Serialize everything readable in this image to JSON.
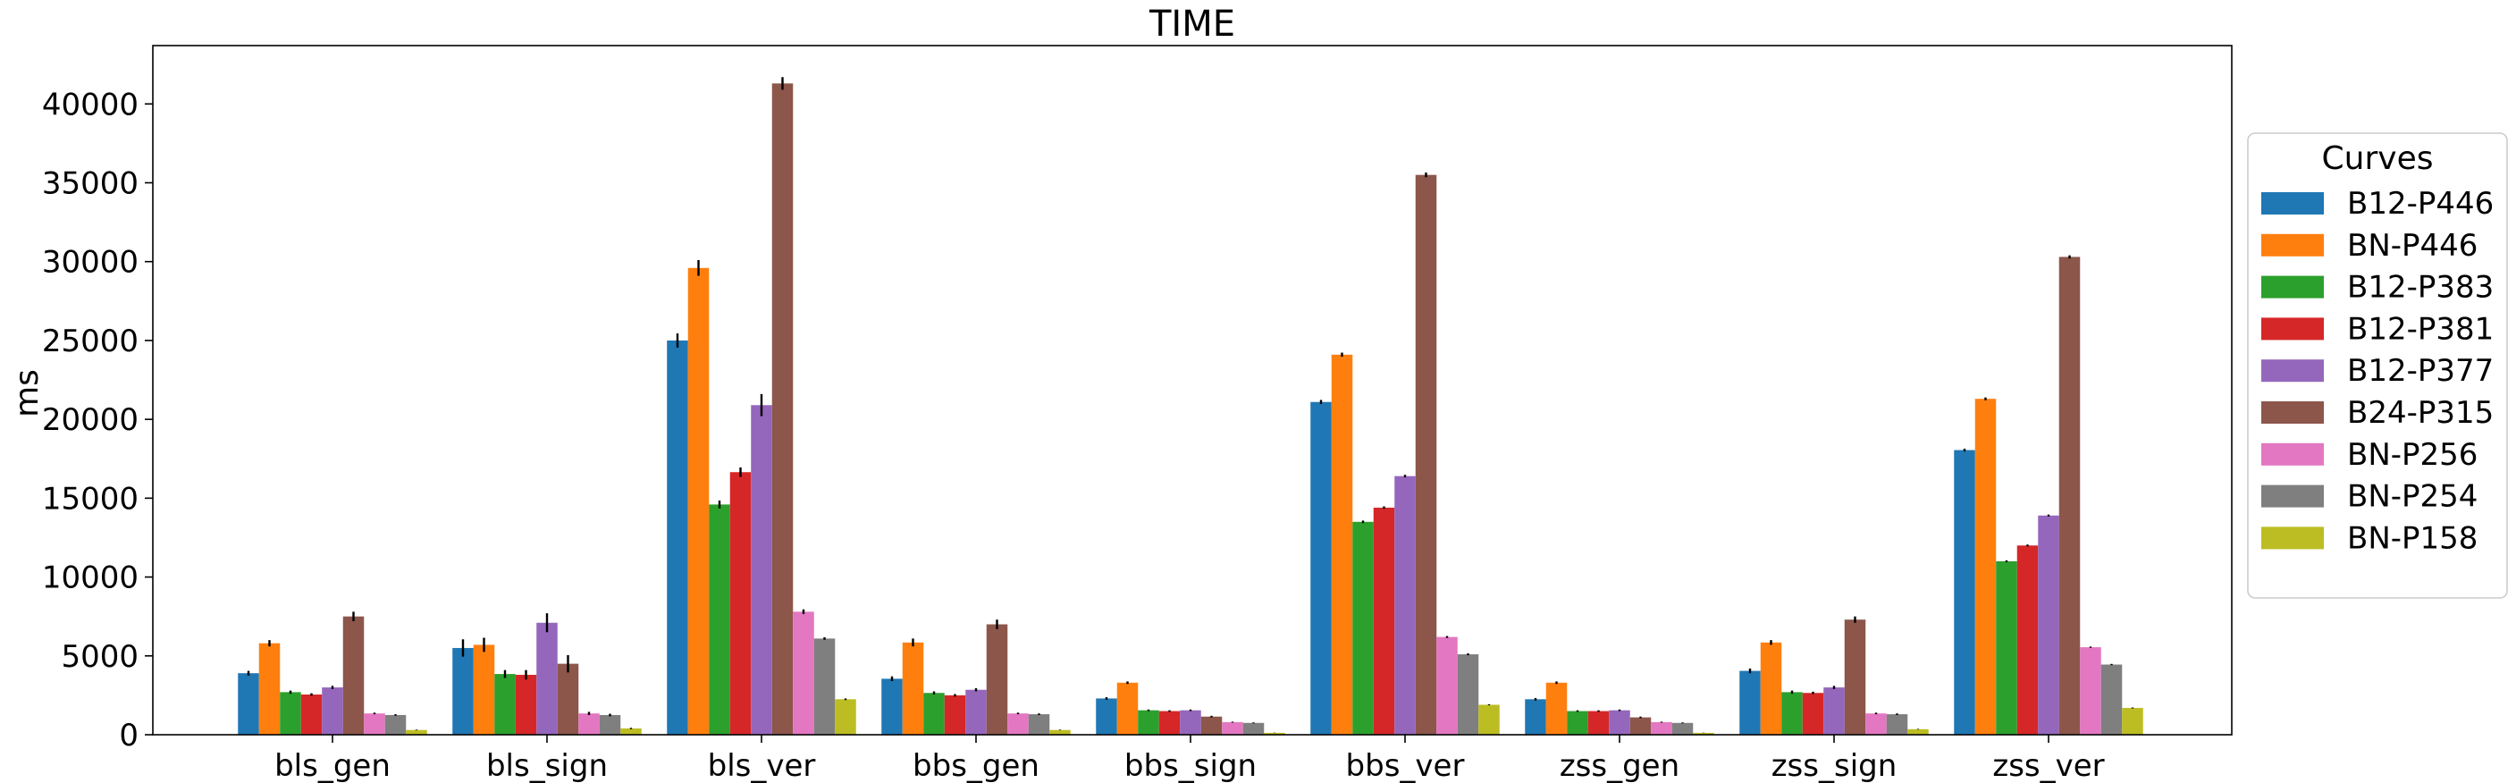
{
  "chart_data": {
    "type": "bar",
    "title": "TIME",
    "xlabel": "",
    "ylabel": "ms",
    "ylim": [
      0,
      43700
    ],
    "yticks": [
      0,
      5000,
      10000,
      15000,
      20000,
      25000,
      30000,
      35000,
      40000
    ],
    "grid": false,
    "legend": {
      "title": "Curves",
      "placement": "right, outside plot"
    },
    "categories": [
      "bls_gen",
      "bls_sign",
      "bls_ver",
      "bbs_gen",
      "bbs_sign",
      "bbs_ver",
      "zss_gen",
      "zss_sign",
      "zss_ver"
    ],
    "series": [
      {
        "name": "B12-P446",
        "color": "#1f77b4",
        "values": [
          3900,
          5500,
          25000,
          3550,
          2300,
          21100,
          2250,
          4050,
          18050
        ],
        "errors": [
          150,
          550,
          450,
          150,
          80,
          130,
          80,
          150,
          90
        ]
      },
      {
        "name": "BN-P446",
        "color": "#ff7f0e",
        "values": [
          5800,
          5700,
          29600,
          5850,
          3300,
          24100,
          3300,
          5850,
          21300
        ],
        "errors": [
          200,
          450,
          500,
          250,
          80,
          130,
          80,
          150,
          90
        ]
      },
      {
        "name": "B12-P383",
        "color": "#2ca02c",
        "values": [
          2700,
          3850,
          14600,
          2650,
          1550,
          13500,
          1500,
          2700,
          11000
        ],
        "errors": [
          100,
          250,
          250,
          100,
          50,
          80,
          50,
          100,
          60
        ]
      },
      {
        "name": "B12-P381",
        "color": "#d62728",
        "values": [
          2550,
          3800,
          16650,
          2500,
          1500,
          14400,
          1500,
          2650,
          12000
        ],
        "errors": [
          80,
          300,
          300,
          80,
          50,
          80,
          50,
          80,
          60
        ]
      },
      {
        "name": "B12-P377",
        "color": "#9467bd",
        "values": [
          3000,
          7100,
          20900,
          2850,
          1550,
          16400,
          1550,
          3000,
          13900
        ],
        "errors": [
          100,
          600,
          700,
          100,
          50,
          80,
          50,
          100,
          60
        ]
      },
      {
        "name": "B24-P315",
        "color": "#8c564b",
        "values": [
          7500,
          4500,
          41300,
          7000,
          1150,
          35500,
          1100,
          7300,
          30300
        ],
        "errors": [
          300,
          550,
          400,
          300,
          50,
          150,
          50,
          200,
          100
        ]
      },
      {
        "name": "BN-P256",
        "color": "#e377c2",
        "values": [
          1350,
          1350,
          7800,
          1350,
          800,
          6200,
          800,
          1350,
          5550
        ],
        "errors": [
          50,
          100,
          150,
          50,
          30,
          60,
          30,
          50,
          40
        ]
      },
      {
        "name": "BN-P254",
        "color": "#7f7f7f",
        "values": [
          1250,
          1250,
          6100,
          1300,
          750,
          5100,
          750,
          1300,
          4450
        ],
        "errors": [
          50,
          80,
          80,
          50,
          30,
          60,
          30,
          50,
          40
        ]
      },
      {
        "name": "BN-P158",
        "color": "#bcbd22",
        "values": [
          300,
          400,
          2250,
          300,
          120,
          1900,
          120,
          350,
          1700
        ],
        "errors": [
          20,
          40,
          50,
          20,
          10,
          30,
          10,
          20,
          30
        ]
      }
    ]
  }
}
